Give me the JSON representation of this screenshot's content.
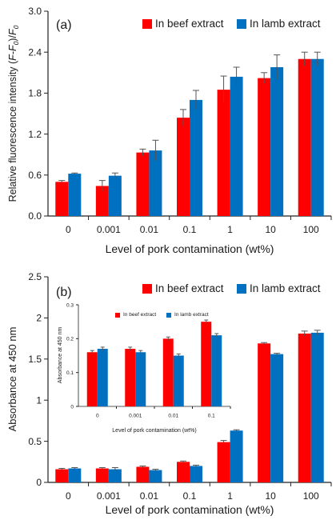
{
  "chart_data": [
    {
      "type": "bar",
      "panel_label": "(a)",
      "ylabel_main": "Relative fluorescence intensity (",
      "ylabel_formula": "F-F",
      "ylabel_sub1": "0",
      "ylabel_mid": ")/",
      "ylabel_formula2": "F",
      "ylabel_sub2": "0",
      "xlabel": "Level of pork contamination (wt%)",
      "categories": [
        "0",
        "0.001",
        "0.01",
        "0.1",
        "1",
        "10",
        "100"
      ],
      "ylim": [
        0,
        3.0
      ],
      "yticks": [
        "0.0",
        "0.6",
        "1.2",
        "1.8",
        "2.4",
        "3.0"
      ],
      "legend_position": "top",
      "series": [
        {
          "name": "In beef extract",
          "color": "#ff0000",
          "values": [
            0.5,
            0.44,
            0.93,
            1.44,
            1.85,
            2.02,
            2.3
          ],
          "errors": [
            0.02,
            0.08,
            0.05,
            0.12,
            0.2,
            0.08,
            0.1
          ]
        },
        {
          "name": "In lamb extract",
          "color": "#0070c0",
          "values": [
            0.62,
            0.59,
            0.96,
            1.7,
            2.04,
            2.18,
            2.3
          ],
          "errors": [
            0.01,
            0.04,
            0.15,
            0.14,
            0.14,
            0.18,
            0.1
          ]
        }
      ]
    },
    {
      "type": "bar",
      "panel_label": "(b)",
      "ylabel": "Absorbance at 450 nm",
      "xlabel": "Level of pork contamination (wt%)",
      "categories": [
        "0",
        "0.001",
        "0.01",
        "0.1",
        "1",
        "10",
        "100"
      ],
      "ylim": [
        0,
        2.5
      ],
      "yticks": [
        "0",
        "0.5",
        "1",
        "1.5",
        "2",
        "2.5"
      ],
      "legend_position": "top",
      "series": [
        {
          "name": "In beef extract",
          "color": "#ff0000",
          "values": [
            0.16,
            0.17,
            0.19,
            0.25,
            0.49,
            1.69,
            1.81
          ],
          "errors": [
            0.01,
            0.01,
            0.01,
            0.01,
            0.02,
            0.01,
            0.03
          ]
        },
        {
          "name": "In lamb extract",
          "color": "#0070c0",
          "values": [
            0.17,
            0.16,
            0.15,
            0.2,
            0.63,
            1.56,
            1.82
          ],
          "errors": [
            0.01,
            0.02,
            0.01,
            0.01,
            0.01,
            0.01,
            0.03
          ]
        }
      ],
      "inset": {
        "type": "bar",
        "ylabel": "Absorbance at 450 nm",
        "xlabel": "Level of pork contamination (wt%)",
        "categories": [
          "0",
          "0.001",
          "0.01",
          "0.1"
        ],
        "ylim": [
          0,
          0.3
        ],
        "yticks": [
          "0",
          "0.1",
          "0.2",
          "0.3"
        ],
        "legend_position": "top",
        "series": [
          {
            "name": "In beef extract",
            "color": "#ff0000",
            "values": [
              0.16,
              0.17,
              0.2,
              0.25
            ],
            "errors": [
              0.005,
              0.005,
              0.005,
              0.005
            ]
          },
          {
            "name": "In lamb extract",
            "color": "#0070c0",
            "values": [
              0.17,
              0.16,
              0.15,
              0.21
            ],
            "errors": [
              0.005,
              0.005,
              0.005,
              0.005
            ]
          }
        ]
      }
    }
  ]
}
